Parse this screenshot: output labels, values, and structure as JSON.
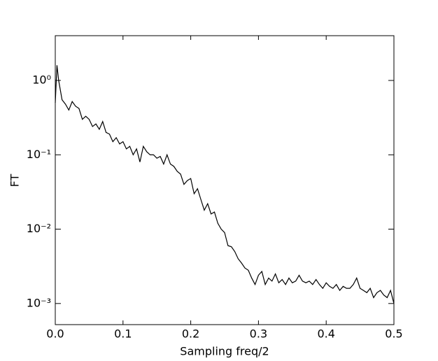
{
  "chart_data": {
    "type": "line",
    "xlabel": "Sampling freq/2",
    "ylabel": "FT",
    "log_y": true,
    "grid": false,
    "xlim": [
      0,
      0.5
    ],
    "xticks": [
      {
        "value": 0,
        "label": "0.0"
      },
      0.1,
      0.2,
      0.3,
      0.4,
      0.5
    ],
    "ylim": [
      0.00052,
      4
    ],
    "yticks": [
      {
        "value": 1,
        "label": "10⁰"
      },
      {
        "value": 0.1,
        "label": "10⁻¹"
      },
      {
        "value": 0.01,
        "label": "10⁻²"
      },
      {
        "value": 0.001,
        "label": "10⁻³"
      }
    ],
    "x": [
      0,
      0.0025,
      0.005,
      0.01,
      0.015,
      0.02,
      0.025,
      0.03,
      0.035,
      0.04,
      0.045,
      0.05,
      0.055,
      0.06,
      0.065,
      0.07,
      0.075,
      0.08,
      0.085,
      0.09,
      0.095,
      0.1,
      0.105,
      0.11,
      0.115,
      0.12,
      0.125,
      0.13,
      0.135,
      0.14,
      0.145,
      0.15,
      0.155,
      0.16,
      0.165,
      0.17,
      0.175,
      0.18,
      0.185,
      0.19,
      0.195,
      0.2,
      0.205,
      0.21,
      0.215,
      0.22,
      0.225,
      0.23,
      0.235,
      0.24,
      0.245,
      0.25,
      0.255,
      0.26,
      0.265,
      0.27,
      0.275,
      0.28,
      0.285,
      0.29,
      0.295,
      0.3,
      0.305,
      0.31,
      0.315,
      0.32,
      0.325,
      0.33,
      0.335,
      0.34,
      0.345,
      0.35,
      0.355,
      0.36,
      0.365,
      0.37,
      0.375,
      0.38,
      0.385,
      0.39,
      0.395,
      0.4,
      0.405,
      0.41,
      0.415,
      0.42,
      0.425,
      0.43,
      0.435,
      0.44,
      0.445,
      0.45,
      0.455,
      0.46,
      0.465,
      0.47,
      0.475,
      0.48,
      0.485,
      0.49,
      0.495,
      0.5
    ],
    "series": [
      {
        "color": "#000000",
        "values": [
          0.5,
          1.6,
          1.0,
          0.55,
          0.48,
          0.4,
          0.52,
          0.45,
          0.42,
          0.3,
          0.33,
          0.3,
          0.24,
          0.26,
          0.22,
          0.28,
          0.2,
          0.19,
          0.15,
          0.17,
          0.14,
          0.15,
          0.12,
          0.13,
          0.1,
          0.12,
          0.08,
          0.13,
          0.11,
          0.1,
          0.1,
          0.09,
          0.095,
          0.075,
          0.1,
          0.075,
          0.07,
          0.06,
          0.055,
          0.04,
          0.045,
          0.048,
          0.03,
          0.035,
          0.025,
          0.018,
          0.022,
          0.016,
          0.017,
          0.012,
          0.01,
          0.009,
          0.006,
          0.0058,
          0.005,
          0.004,
          0.0035,
          0.003,
          0.0028,
          0.0022,
          0.0018,
          0.0024,
          0.0027,
          0.0018,
          0.0022,
          0.002,
          0.0025,
          0.0019,
          0.0021,
          0.0018,
          0.0022,
          0.0019,
          0.002,
          0.0024,
          0.002,
          0.0019,
          0.002,
          0.0018,
          0.0021,
          0.0018,
          0.0016,
          0.0019,
          0.0017,
          0.0016,
          0.0018,
          0.0015,
          0.0017,
          0.0016,
          0.0016,
          0.0018,
          0.0022,
          0.0016,
          0.0015,
          0.0014,
          0.0016,
          0.0012,
          0.0014,
          0.0015,
          0.0013,
          0.0012,
          0.0015,
          0.001
        ]
      }
    ]
  }
}
